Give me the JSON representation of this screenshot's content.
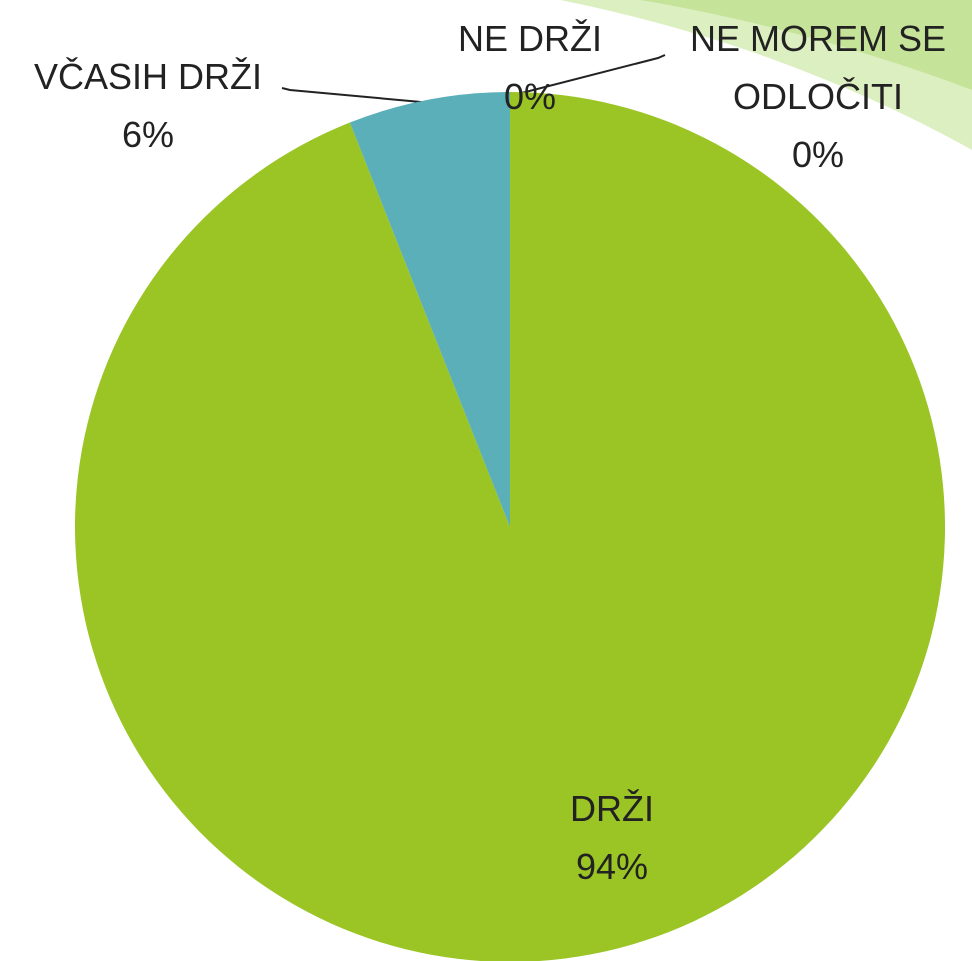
{
  "chart_data": {
    "type": "pie",
    "categories": [
      "DRŽI",
      "VČASIH DRŽI",
      "NE DRŽI",
      "NE MOREM SE ODLOČITI"
    ],
    "values": [
      94,
      6,
      0,
      0
    ],
    "value_labels": [
      "94%",
      "6%",
      "0%",
      "0%"
    ],
    "colors": [
      "#9ac524",
      "#5aafb8",
      "#4f81bd",
      "#c0504d"
    ]
  }
}
